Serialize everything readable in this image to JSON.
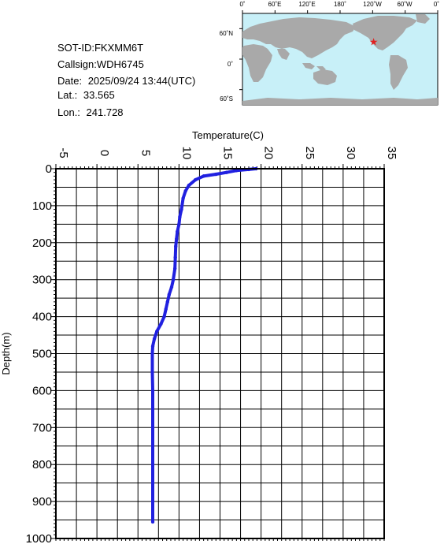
{
  "station": {
    "sot_id_label": "SOT-ID:",
    "sot_id": "FKXMM6T",
    "callsign_label": "Callsign:",
    "callsign": "WDH6745",
    "date_label": "Date:",
    "date": "2025/09/24 13:44(UTC)",
    "lat_label": "Lat.:",
    "lat": "33.565",
    "lon_label": "Lon.:",
    "lon": "241.728"
  },
  "map": {
    "lon_labels": [
      "0˚",
      "60˚E",
      "120˚E",
      "180˚",
      "120˚W",
      "60˚W",
      "0˚"
    ],
    "lat_labels": [
      "60˚N",
      "0˚",
      "60˚S"
    ],
    "ocean_color": "#c8f0f8",
    "land_color": "#a9a9a9",
    "marker_color": "#e02020",
    "marker": {
      "lon": 241.728,
      "lat": 33.565
    }
  },
  "chart_data": {
    "type": "line",
    "title": "",
    "xlabel": "Temperature(C)",
    "ylabel": "Depth(m)",
    "xlim": [
      -5,
      35
    ],
    "ylim": [
      0,
      1000
    ],
    "y_inverted": true,
    "x_axis_position": "top",
    "xticks": [
      "-5",
      "0",
      "5",
      "10",
      "15",
      "20",
      "25",
      "30",
      "35"
    ],
    "yticks": [
      "0",
      "100",
      "200",
      "300",
      "400",
      "500",
      "600",
      "700",
      "800",
      "900",
      "1000"
    ],
    "grid": true,
    "series_color": "#2020e0",
    "series": [
      {
        "x": [
          19.4,
          18.5,
          17.0,
          15.8,
          14.5,
          13.0,
          12.0,
          11.2,
          10.8,
          10.5,
          10.3,
          10.1,
          10.0,
          9.8,
          9.7,
          9.6,
          9.55,
          9.5,
          9.3,
          9.1,
          8.8,
          8.6,
          8.4,
          8.2,
          7.8,
          7.3,
          7.0,
          6.8,
          6.75,
          6.75,
          6.8,
          6.8,
          6.8,
          6.8,
          6.8,
          6.8
        ],
        "y": [
          0,
          2,
          5,
          10,
          15,
          20,
          30,
          45,
          60,
          80,
          110,
          130,
          150,
          170,
          190,
          210,
          240,
          270,
          300,
          320,
          340,
          360,
          380,
          400,
          420,
          440,
          460,
          480,
          500,
          550,
          600,
          700,
          800,
          850,
          900,
          955
        ]
      }
    ]
  }
}
